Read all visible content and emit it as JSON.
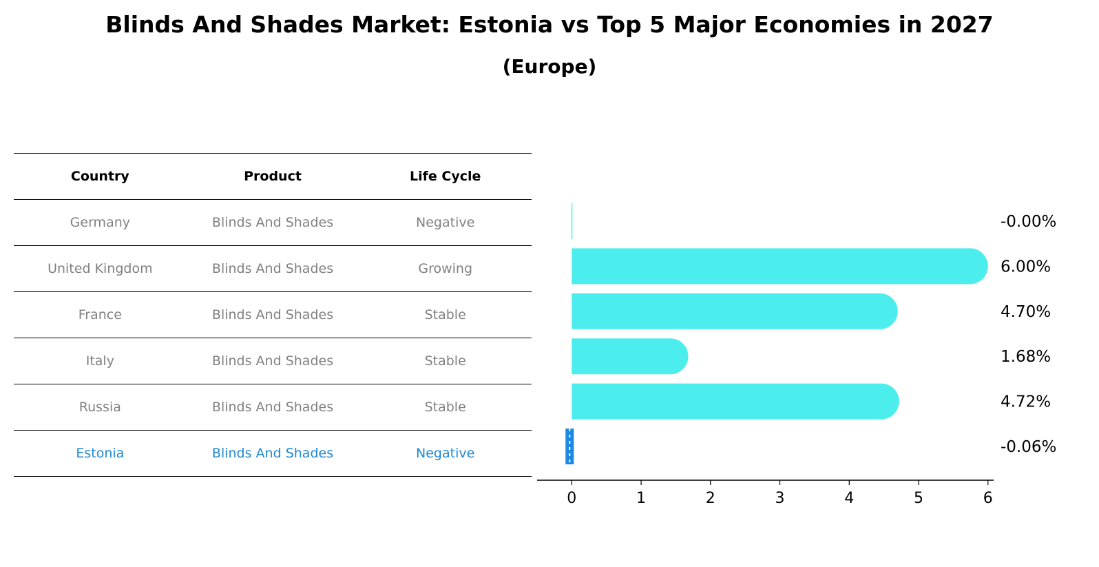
{
  "chart_data": {
    "type": "bar",
    "orientation": "horizontal",
    "title": "Blinds And Shades Market: Estonia vs Top 5 Major Economies in 2027",
    "subtitle": "(Europe)",
    "categories": [
      "Germany",
      "United Kingdom",
      "France",
      "Italy",
      "Russia",
      "Estonia"
    ],
    "values": [
      -0.0,
      6.0,
      4.7,
      1.68,
      4.72,
      -0.06
    ],
    "value_labels": [
      "-0.00%",
      "6.00%",
      "4.70%",
      "1.68%",
      "4.72%",
      "-0.06%"
    ],
    "xlim": [
      -0.4,
      6.3
    ],
    "xticks": [
      "0",
      "1",
      "2",
      "3",
      "4",
      "5",
      "6"
    ],
    "grid": false,
    "colors": {
      "bar": "#4ceded",
      "focus": "#1e88e5",
      "focus_text": "#1f88d0",
      "muted_text": "#808080"
    },
    "table": {
      "headers": [
        "Country",
        "Product",
        "Life Cycle"
      ],
      "rows": [
        [
          "Germany",
          "Blinds And Shades",
          "Negative"
        ],
        [
          "United Kingdom",
          "Blinds And Shades",
          "Growing"
        ],
        [
          "France",
          "Blinds And Shades",
          "Stable"
        ],
        [
          "Italy",
          "Blinds And Shades",
          "Stable"
        ],
        [
          "Russia",
          "Blinds And Shades",
          "Stable"
        ],
        [
          "Estonia",
          "Blinds And Shades",
          "Negative"
        ]
      ],
      "highlight_row": "Estonia"
    }
  }
}
